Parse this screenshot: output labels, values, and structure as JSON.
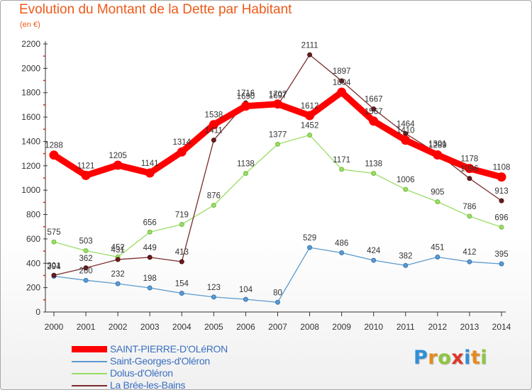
{
  "title": "Evolution du Montant de la Dette par Habitant",
  "subtitle": "(en €)",
  "logo": {
    "text": "Proxiti",
    "letters": [
      {
        "c": "P",
        "color": "#2f8fd8"
      },
      {
        "c": "r",
        "color": "#e68a1e"
      },
      {
        "c": "o",
        "color": "#8cc63f"
      },
      {
        "c": "x",
        "color": "#e0342a"
      },
      {
        "c": "i",
        "color": "#2f8fd8"
      },
      {
        "c": "t",
        "color": "#e68a1e"
      },
      {
        "c": "i",
        "color": "#8cc63f"
      }
    ]
  },
  "chart_data": {
    "type": "line",
    "x": [
      2000,
      2001,
      2002,
      2003,
      2004,
      2005,
      2006,
      2007,
      2008,
      2009,
      2010,
      2011,
      2012,
      2013,
      2014
    ],
    "ylim": [
      0,
      2200
    ],
    "yticks": [
      0,
      200,
      400,
      600,
      800,
      1000,
      1200,
      1400,
      1600,
      1800,
      2000,
      2200
    ],
    "grid": false,
    "legend_position": "bottom-left",
    "series": [
      {
        "name": "SAINT-PIERRE-D'OLéRON",
        "color": "#ff0000",
        "values": [
          1288,
          1121,
          1205,
          1141,
          1314,
          1538,
          1690,
          1707,
          1612,
          1804,
          1567,
          1410,
          1289,
          1178,
          1108
        ]
      },
      {
        "name": "Saint-Georges-d'Oléron",
        "color": "#5b9bd0",
        "values": [
          294,
          260,
          232,
          198,
          154,
          123,
          104,
          80,
          529,
          486,
          424,
          382,
          451,
          412,
          395
        ]
      },
      {
        "name": "Dolus-d'Oléron",
        "color": "#99dd66",
        "values": [
          575,
          503,
          452,
          656,
          719,
          876,
          1138,
          1377,
          1452,
          1171,
          1138,
          1006,
          905,
          786,
          696
        ]
      },
      {
        "name": "La Brée-les-Bains",
        "color": "#7b2c2c",
        "values": [
          301,
          362,
          431,
          449,
          413,
          1411,
          1716,
          1697,
          2111,
          1897,
          1667,
          1464,
          1301,
          1096,
          913
        ]
      }
    ]
  }
}
